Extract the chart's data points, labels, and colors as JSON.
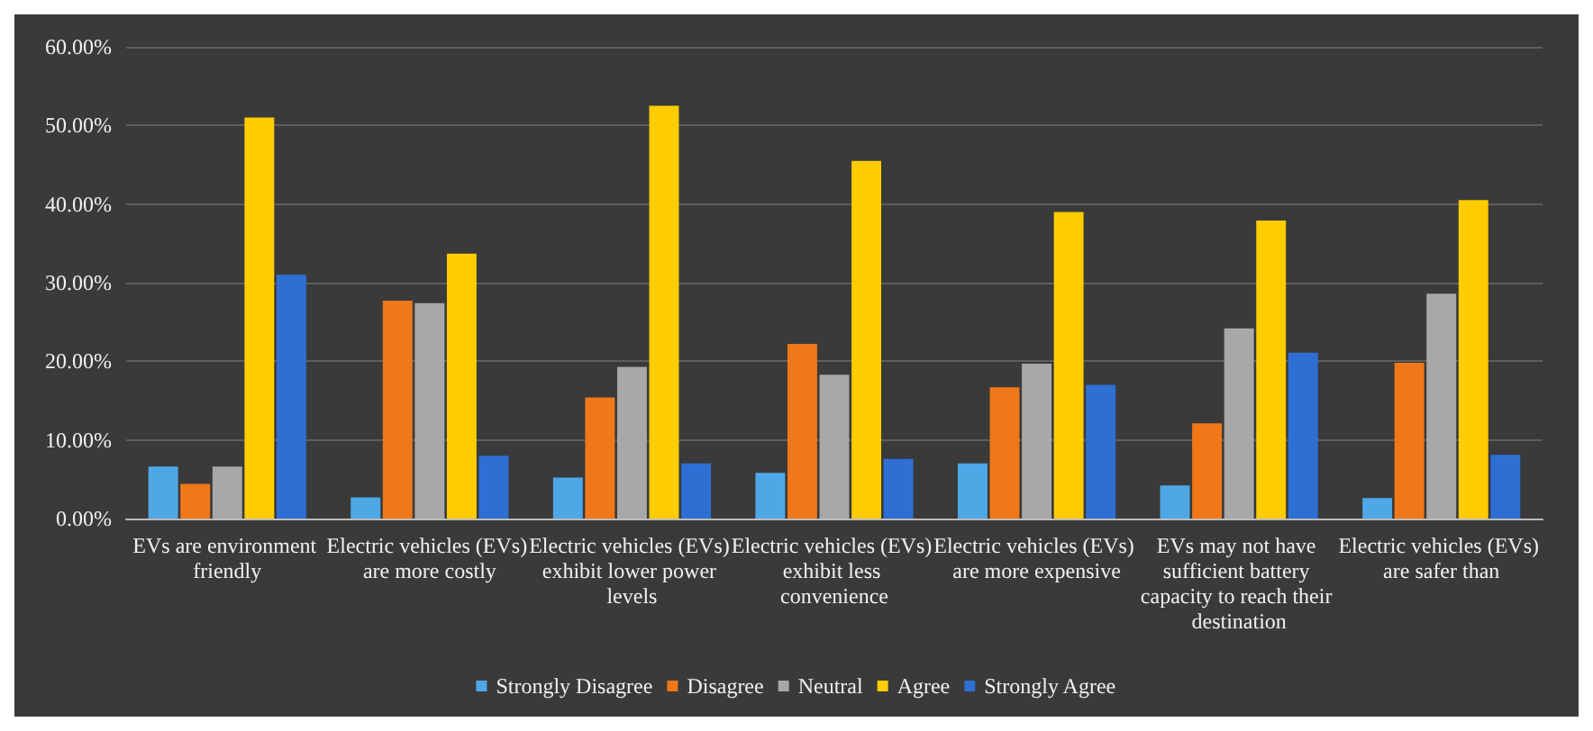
{
  "chart_data": {
    "type": "bar",
    "categories": [
      "EVs are environment friendly",
      "Electric vehicles (EVs) are more costly",
      "Electric vehicles (EVs) exhibit lower power levels",
      "Electric vehicles (EVs) exhibit less convenience",
      "Electric vehicles (EVs) are more expensive",
      "EVs may not have sufficient battery capacity to reach their destination",
      "Electric vehicles (EVs) are safer than"
    ],
    "series": [
      {
        "name": "Strongly Disagree",
        "color": "#4fa8e6",
        "values": [
          6.6,
          2.7,
          5.2,
          5.8,
          7.0,
          4.2,
          2.6
        ]
      },
      {
        "name": "Disagree",
        "color": "#f07818",
        "values": [
          4.4,
          27.7,
          15.4,
          22.2,
          16.7,
          12.1,
          19.8
        ]
      },
      {
        "name": "Neutral",
        "color": "#a8a8a8",
        "values": [
          6.6,
          27.4,
          19.3,
          18.3,
          19.7,
          24.2,
          28.6
        ]
      },
      {
        "name": "Agree",
        "color": "#ffcc00",
        "values": [
          51.0,
          33.7,
          52.5,
          45.5,
          39.0,
          37.9,
          40.5
        ]
      },
      {
        "name": "Strongly Agree",
        "color": "#2e6fd4",
        "values": [
          31.0,
          8.0,
          7.0,
          7.6,
          17.0,
          21.1,
          8.1
        ]
      }
    ],
    "ylim": [
      0,
      60
    ],
    "yticks": [
      {
        "value": 0,
        "label": "0.00%"
      },
      {
        "value": 10,
        "label": "10.00%"
      },
      {
        "value": 20,
        "label": "20.00%"
      },
      {
        "value": 30,
        "label": "30.00%"
      },
      {
        "value": 40,
        "label": "40.00%"
      },
      {
        "value": 50,
        "label": "50.00%"
      },
      {
        "value": 60,
        "label": "60.00%"
      }
    ],
    "grid": "y",
    "legend": "bottom"
  }
}
